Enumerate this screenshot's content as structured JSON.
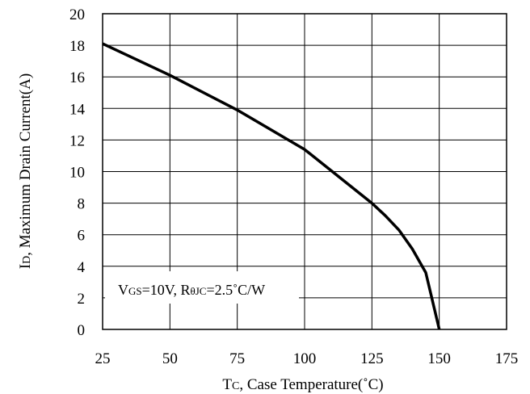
{
  "chart_data": {
    "type": "line",
    "xlabel": {
      "main": "T",
      "sub": "C",
      "rest": ", Case Temperature(˚C)"
    },
    "ylabel": {
      "main": "I",
      "sub": "D",
      "rest": ", Maximum Drain Current(A)"
    },
    "xlim": [
      25,
      175
    ],
    "ylim": [
      0,
      20
    ],
    "x_ticks": [
      25,
      50,
      75,
      100,
      125,
      150,
      175
    ],
    "y_ticks": [
      0,
      2,
      4,
      6,
      8,
      10,
      12,
      14,
      16,
      18,
      20
    ],
    "grid": true,
    "series": [
      {
        "x": [
          25,
          50,
          75,
          100,
          125,
          130,
          135,
          140,
          145,
          150
        ],
        "y": [
          18.1,
          16.1,
          13.9,
          11.4,
          8.0,
          7.2,
          6.3,
          5.1,
          3.6,
          0.0
        ]
      }
    ],
    "annotation": {
      "parts": [
        {
          "text": "V",
          "sub": false
        },
        {
          "text": "GS",
          "sub": true
        },
        {
          "text": "=10V, R",
          "sub": false
        },
        {
          "text": "θJC",
          "sub": true
        },
        {
          "text": "=2.5˚C/W",
          "sub": false
        }
      ]
    },
    "colors": {
      "line": "#000000",
      "grid": "#000000",
      "background": "#ffffff"
    }
  }
}
